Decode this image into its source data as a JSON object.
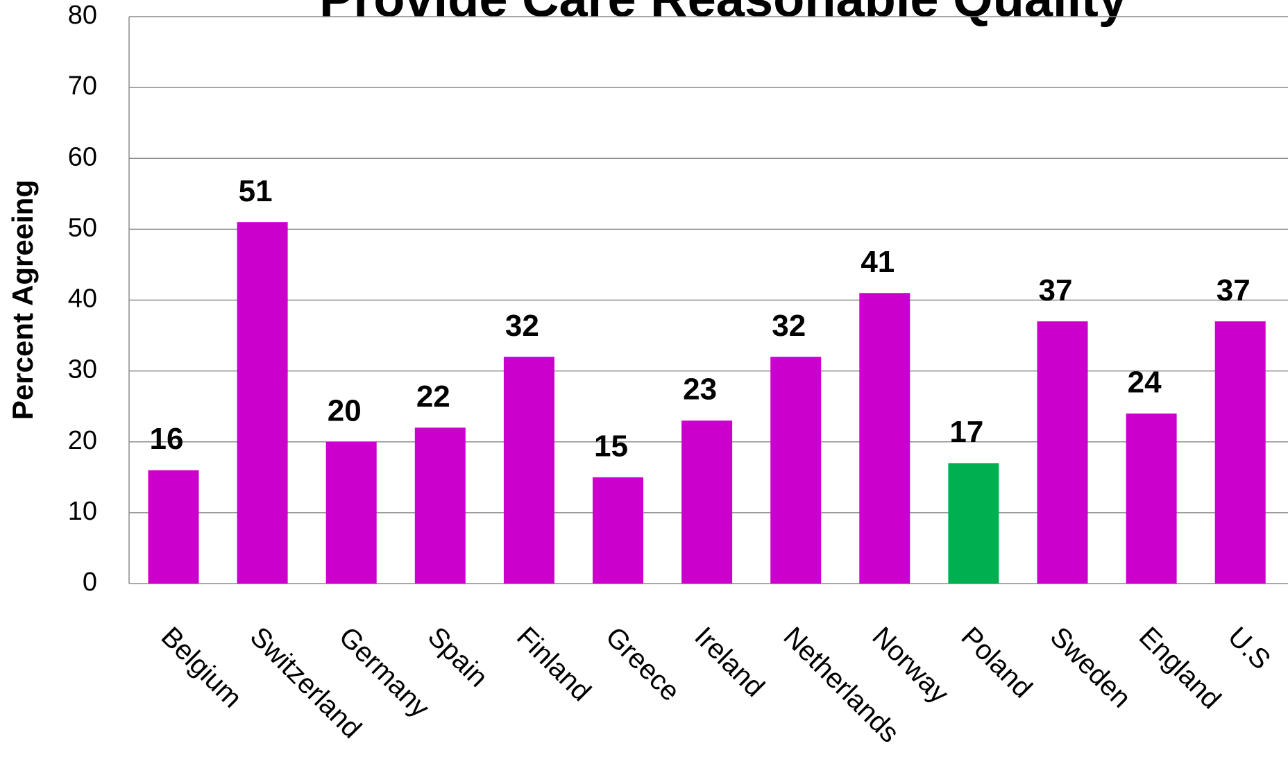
{
  "chart_data": {
    "type": "bar",
    "title": "Provide Care Reasonable Quality",
    "y_label": "Percent Agreeing",
    "categories": [
      "Belgium",
      "Switzerland",
      "Germany",
      "Spain",
      "Finland",
      "Greece",
      "Ireland",
      "Netherlands",
      "Norway",
      "Poland",
      "Sweden",
      "England",
      "U.S"
    ],
    "values": [
      16,
      51,
      20,
      22,
      32,
      15,
      23,
      32,
      41,
      17,
      37,
      24,
      37
    ],
    "colors": [
      "#cc00cc",
      "#cc00cc",
      "#cc00cc",
      "#cc00cc",
      "#cc00cc",
      "#cc00cc",
      "#cc00cc",
      "#cc00cc",
      "#cc00cc",
      "#00b050",
      "#cc00cc",
      "#cc00cc",
      "#cc00cc"
    ],
    "ylim": [
      0,
      80
    ],
    "yticks": [
      0,
      10,
      20,
      30,
      40,
      50,
      60,
      70,
      80
    ],
    "grid": true
  }
}
